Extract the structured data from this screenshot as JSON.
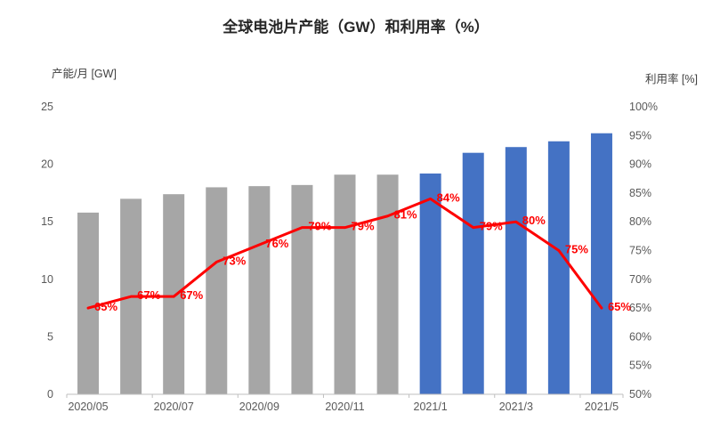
{
  "title": "全球电池片产能（GW）和利用率（%）",
  "left_axis_title": "产能/月 [GW]",
  "right_axis_title": "利用率 [%]",
  "colors": {
    "bar_gray": "#a6a6a6",
    "bar_blue": "#4472c4",
    "line": "#fe0000",
    "data_label": "#fe0000",
    "axis_text": "#595959",
    "axis_line": "#bfbfbf",
    "title_text": "#262626"
  },
  "chart_data": {
    "type": "bar",
    "subtype": "combo-bar-line",
    "title": "全球电池片产能（GW）和利用率（%）",
    "xlabel": "",
    "ylabel_left": "产能/月 [GW]",
    "ylabel_right": "利用率 [%]",
    "grid": false,
    "legend": "none",
    "categories": [
      "2020/05",
      "2020/06",
      "2020/07",
      "2020/08",
      "2020/09",
      "2020/10",
      "2020/11",
      "2020/12",
      "2021/1",
      "2021/2",
      "2021/3",
      "2021/4",
      "2021/5"
    ],
    "x_tick_labels": [
      "2020/05",
      "2020/07",
      "2020/09",
      "2020/11",
      "2021/1",
      "2021/3",
      "2021/5"
    ],
    "series": [
      {
        "name": "产能/月 (GW)",
        "type": "bar",
        "axis": "left",
        "values": [
          15.8,
          17.0,
          17.4,
          18.0,
          18.1,
          18.2,
          19.1,
          19.1,
          19.2,
          21.0,
          21.5,
          22.0,
          22.7
        ],
        "point_colors": [
          "gray",
          "gray",
          "gray",
          "gray",
          "gray",
          "gray",
          "gray",
          "gray",
          "blue",
          "blue",
          "blue",
          "blue",
          "blue"
        ]
      },
      {
        "name": "利用率 (%)",
        "type": "line",
        "axis": "right",
        "values": [
          65,
          67,
          67,
          73,
          76,
          79,
          79,
          81,
          84,
          79,
          80,
          75,
          65
        ],
        "labels": [
          "65%",
          "67%",
          "67%",
          "73%",
          "76%",
          "79%",
          "79%",
          "81%",
          "84%",
          "79%",
          "80%",
          "75%",
          "65%"
        ]
      }
    ],
    "left_axis": {
      "min": 0,
      "max": 25,
      "step": 5,
      "ticks": [
        "0",
        "5",
        "10",
        "15",
        "20",
        "25"
      ]
    },
    "right_axis": {
      "min": 50,
      "max": 100,
      "step": 5,
      "ticks": [
        "50%",
        "55%",
        "60%",
        "65%",
        "70%",
        "75%",
        "80%",
        "85%",
        "90%",
        "95%",
        "100%"
      ]
    }
  }
}
